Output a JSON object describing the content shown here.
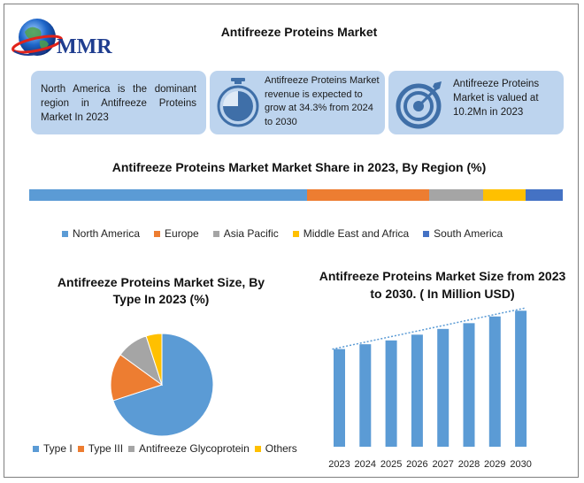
{
  "header": {
    "logo_text": "MMR",
    "title": "Antifreeze Proteins Market"
  },
  "cards": [
    {
      "text": "North America is the dominant region in Antifreeze Proteins Market In 2023",
      "icon": "none"
    },
    {
      "text": "Antifreeze Proteins Market revenue is expected to grow at 34.3% from 2024 to 2030",
      "icon": "stopwatch-icon"
    },
    {
      "text": "Antifreeze Proteins Market is valued at 10.2Mn in 2023",
      "icon": "target-icon"
    }
  ],
  "colors": {
    "blue": "#5b9bd5",
    "orange": "#ed7d31",
    "gray": "#a5a5a5",
    "yellow": "#ffc000",
    "navy": "#4472c4",
    "card_bg": "#bdd4ee"
  },
  "chart_data": [
    {
      "type": "bar",
      "orientation": "horizontal-stacked",
      "title": "Antifreeze Proteins Market Market Share in 2023, By Region (%)",
      "categories": [
        "North America",
        "Europe",
        "Asia Pacific",
        "Middle East and Africa",
        "South America"
      ],
      "values": [
        52,
        23,
        10,
        8,
        7
      ],
      "legend": "bottom",
      "grid": false
    },
    {
      "type": "pie",
      "title": "Antifreeze Proteins Market Size, By Type In 2023 (%)",
      "categories": [
        "Type I",
        "Type III",
        "Antifreeze Glycoprotein",
        "Others"
      ],
      "values": [
        70,
        15,
        10,
        5
      ],
      "legend": "bottom"
    },
    {
      "type": "bar",
      "title": "Antifreeze Proteins Market Size from 2023 to 2030. ( In Million  USD)",
      "categories": [
        "2023",
        "2024",
        "2025",
        "2026",
        "2027",
        "2028",
        "2029",
        "2030"
      ],
      "values": [
        10.2,
        10.7,
        11.1,
        11.7,
        12.3,
        12.9,
        13.6,
        14.2
      ],
      "ylim": [
        0,
        14.5
      ],
      "trendline": true,
      "grid": false,
      "legend": "none"
    }
  ]
}
